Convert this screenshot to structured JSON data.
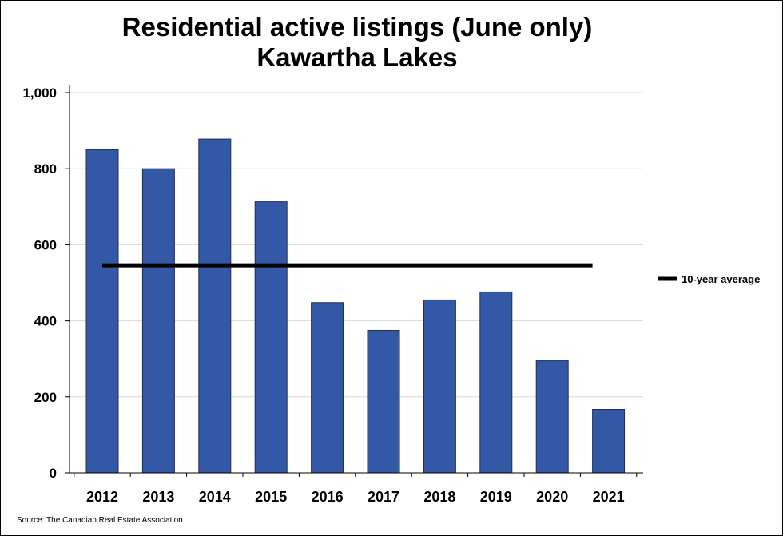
{
  "chart_data": {
    "type": "bar",
    "title": "Residential active listings (June only)",
    "subtitle": "Kawartha Lakes",
    "categories": [
      "2012",
      "2013",
      "2014",
      "2015",
      "2016",
      "2017",
      "2018",
      "2019",
      "2020",
      "2021"
    ],
    "series": [
      {
        "values": [
          850,
          800,
          878,
          713,
          448,
          375,
          455,
          476,
          295,
          167
        ],
        "color": "#3359a6"
      },
      {
        "name": "10-year average",
        "type": "line",
        "values": [
          546,
          546,
          546,
          546,
          546,
          546,
          546,
          546,
          546,
          546
        ],
        "color": "#000000"
      }
    ],
    "xlabel": "",
    "ylabel": "",
    "ylim": [
      0,
      1000
    ],
    "yticks": [
      "0",
      "200",
      "400",
      "600",
      "800",
      "1,000"
    ],
    "grid": true,
    "legend": "right",
    "source": "Source: The Canadian Real Estate Association"
  }
}
